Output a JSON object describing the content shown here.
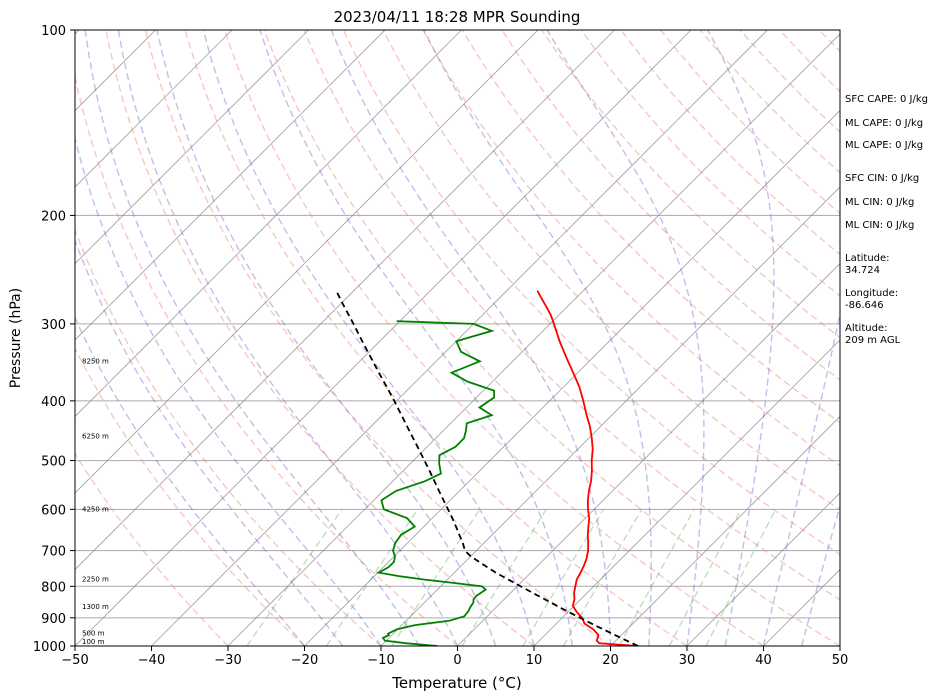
{
  "chart_data": {
    "type": "line",
    "title": "2023/04/11 18:28 MPR Sounding",
    "xlabel": "Temperature (°C)",
    "ylabel": "Pressure (hPa)",
    "xlim": [
      -50,
      50
    ],
    "ylim": [
      1000,
      100
    ],
    "y_scale": "log",
    "skew": "skew-T (isotherms tilted 45°)",
    "grid": true,
    "x_ticks": [
      "−50",
      "−40",
      "−30",
      "−20",
      "−10",
      "0",
      "10",
      "20",
      "30",
      "40",
      "50"
    ],
    "y_ticks": [
      {
        "p": 100,
        "label": "100"
      },
      {
        "p": 200,
        "label": "200"
      },
      {
        "p": 300,
        "label": "300"
      },
      {
        "p": 400,
        "label": "400"
      },
      {
        "p": 500,
        "label": "500"
      },
      {
        "p": 600,
        "label": "600"
      },
      {
        "p": 700,
        "label": "700"
      },
      {
        "p": 800,
        "label": "800"
      },
      {
        "p": 900,
        "label": "900"
      },
      {
        "p": 1000,
        "label": "1000"
      }
    ],
    "height_labels": [
      {
        "p": 985,
        "label": "100 m"
      },
      {
        "p": 955,
        "label": "500 m"
      },
      {
        "p": 865,
        "label": "1300 m"
      },
      {
        "p": 780,
        "label": "2250 m"
      },
      {
        "p": 600,
        "label": "4250 m"
      },
      {
        "p": 457,
        "label": "6250 m"
      },
      {
        "p": 345,
        "label": "8250 m"
      }
    ],
    "colors": {
      "temperature": "#ff0000",
      "dewpoint": "#008000",
      "parcel": "#000000",
      "dry_adiabat": "#f08080",
      "moist_adiabat": "#6a5acd",
      "mixing_ratio": "#5fae5f",
      "isotherm": "#808080"
    },
    "series": [
      {
        "values": [
          [
            1000,
            23.6
          ],
          [
            990,
            18.2
          ],
          [
            980,
            17.5
          ],
          [
            960,
            17.0
          ],
          [
            940,
            15.6
          ],
          [
            920,
            13.7
          ],
          [
            900,
            12.6
          ],
          [
            880,
            11.1
          ],
          [
            860,
            9.8
          ],
          [
            840,
            9.2
          ],
          [
            820,
            8.3
          ],
          [
            800,
            7.6
          ],
          [
            780,
            6.9
          ],
          [
            760,
            6.5
          ],
          [
            740,
            6.0
          ],
          [
            720,
            5.4
          ],
          [
            700,
            4.6
          ],
          [
            680,
            3.6
          ],
          [
            660,
            2.5
          ],
          [
            640,
            1.5
          ],
          [
            620,
            0.5
          ],
          [
            600,
            -0.8
          ],
          [
            580,
            -2.0
          ],
          [
            560,
            -3.1
          ],
          [
            540,
            -4.1
          ],
          [
            520,
            -5.3
          ],
          [
            500,
            -6.7
          ],
          [
            480,
            -8.0
          ],
          [
            460,
            -9.6
          ],
          [
            440,
            -11.4
          ],
          [
            420,
            -13.5
          ],
          [
            400,
            -15.6
          ],
          [
            380,
            -17.9
          ],
          [
            360,
            -20.6
          ],
          [
            340,
            -23.5
          ],
          [
            320,
            -26.5
          ],
          [
            300,
            -29.5
          ],
          [
            290,
            -31.1
          ],
          [
            280,
            -33.0
          ],
          [
            270,
            -35.0
          ],
          [
            265,
            -36.0
          ]
        ]
      },
      {
        "values": [
          [
            1000,
            -2.6
          ],
          [
            990,
            -7.0
          ],
          [
            980,
            -10.2
          ],
          [
            970,
            -10.8
          ],
          [
            960,
            -10.4
          ],
          [
            955,
            -10.7
          ],
          [
            940,
            -10.1
          ],
          [
            925,
            -8.3
          ],
          [
            910,
            -4.4
          ],
          [
            895,
            -3.0
          ],
          [
            880,
            -3.1
          ],
          [
            865,
            -3.4
          ],
          [
            850,
            -3.6
          ],
          [
            840,
            -4.0
          ],
          [
            830,
            -4.1
          ],
          [
            820,
            -3.9
          ],
          [
            810,
            -3.7
          ],
          [
            800,
            -4.6
          ],
          [
            790,
            -8.8
          ],
          [
            780,
            -13.1
          ],
          [
            770,
            -16.8
          ],
          [
            760,
            -19.9
          ],
          [
            745,
            -19.3
          ],
          [
            730,
            -19.3
          ],
          [
            715,
            -19.9
          ],
          [
            700,
            -20.9
          ],
          [
            680,
            -21.6
          ],
          [
            660,
            -21.9
          ],
          [
            640,
            -21.2
          ],
          [
            620,
            -23.3
          ],
          [
            600,
            -27.5
          ],
          [
            580,
            -29.0
          ],
          [
            560,
            -28.3
          ],
          [
            540,
            -25.8
          ],
          [
            525,
            -24.7
          ],
          [
            505,
            -26.3
          ],
          [
            490,
            -27.3
          ],
          [
            475,
            -26.3
          ],
          [
            460,
            -26.3
          ],
          [
            448,
            -27.0
          ],
          [
            435,
            -27.9
          ],
          [
            422,
            -25.7
          ],
          [
            410,
            -28.3
          ],
          [
            395,
            -27.7
          ],
          [
            385,
            -28.6
          ],
          [
            372,
            -33.3
          ],
          [
            360,
            -36.5
          ],
          [
            345,
            -34.3
          ],
          [
            333,
            -38.0
          ],
          [
            320,
            -40.0
          ],
          [
            308,
            -36.7
          ],
          [
            300,
            -40.0
          ],
          [
            297,
            -50.4
          ]
        ]
      },
      {
        "values": [
          [
            1000,
            23.6
          ],
          [
            970,
            20.3
          ],
          [
            940,
            16.9
          ],
          [
            910,
            13.5
          ],
          [
            880,
            10.0
          ],
          [
            850,
            6.5
          ],
          [
            820,
            2.9
          ],
          [
            790,
            -0.8
          ],
          [
            760,
            -4.6
          ],
          [
            730,
            -8.2
          ],
          [
            715,
            -10.0
          ],
          [
            700,
            -11.5
          ],
          [
            680,
            -12.8
          ],
          [
            660,
            -14.3
          ],
          [
            640,
            -15.8
          ],
          [
            620,
            -17.4
          ],
          [
            600,
            -19.1
          ],
          [
            560,
            -22.7
          ],
          [
            520,
            -26.5
          ],
          [
            480,
            -30.7
          ],
          [
            440,
            -35.3
          ],
          [
            400,
            -40.3
          ],
          [
            360,
            -46.0
          ],
          [
            320,
            -52.3
          ],
          [
            300,
            -55.7
          ],
          [
            280,
            -59.4
          ],
          [
            265,
            -62.3
          ]
        ]
      }
    ],
    "annotations": [
      "SFC CAPE: 0 J/kg",
      "ML CAPE: 0 J/kg",
      "ML CAPE: 0 J/kg",
      "SFC CIN: 0 J/kg",
      "ML CIN: 0 J/kg",
      "ML CIN: 0 J/kg",
      "Latitude:",
      "34.724",
      "Longitude:",
      "-86.646",
      "Altitude:",
      "209 m AGL"
    ]
  }
}
